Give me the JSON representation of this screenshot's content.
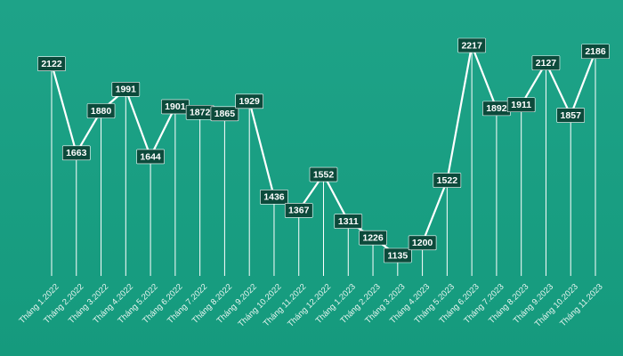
{
  "chart_data": {
    "type": "line",
    "categories": [
      "Tháng 1.2022",
      "Tháng 2.2022",
      "Tháng 3.2022",
      "Tháng 4.2022",
      "Tháng 5.2022",
      "Tháng 6.2022",
      "Tháng 7.2022",
      "Tháng 8.2022",
      "Tháng 9.2022",
      "Tháng 10.2022",
      "Tháng 11.2022",
      "Tháng 12.2022",
      "Tháng 1.2023",
      "Tháng 2.2023",
      "Tháng 3.2023",
      "Tháng 4.2023",
      "Tháng 5.2023",
      "Tháng 6.2023",
      "Tháng 7.2023",
      "Tháng 8.2023",
      "Tháng 9.2023",
      "Tháng 10.2023",
      "Tháng 11.2023"
    ],
    "values": [
      2122,
      1663,
      1880,
      1991,
      1644,
      1901,
      1872,
      1865,
      1929,
      1436,
      1367,
      1552,
      1311,
      1226,
      1135,
      1200,
      1522,
      2217,
      1892,
      1911,
      2127,
      1857,
      2186
    ],
    "title": "",
    "xlabel": "",
    "ylabel": "",
    "grid": false,
    "legend": "none",
    "data_labels": true,
    "colors": {
      "background": "#1a9e82",
      "line": "#ffffff",
      "label_fill": "#0c4a3b",
      "label_text": "#ffffff",
      "tick_text": "#e8f6f1"
    }
  }
}
